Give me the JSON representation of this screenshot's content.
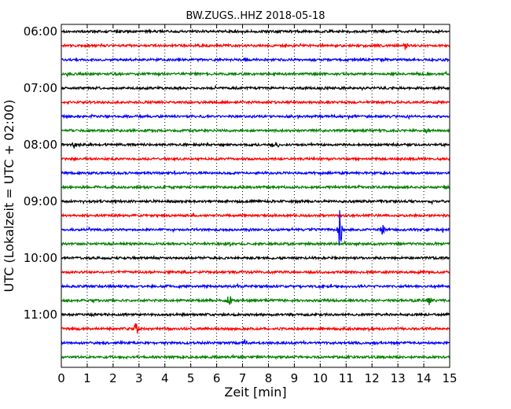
{
  "chart_data": {
    "type": "line",
    "title": "BW.ZUGS..HHZ 2018-05-18",
    "xlabel": "Zeit  [min]",
    "ylabel": "UTC (Lokalzeit = UTC + 02:00)",
    "xlim": [
      0,
      15
    ],
    "x_ticks": [
      0,
      1,
      2,
      3,
      4,
      5,
      6,
      7,
      8,
      9,
      10,
      11,
      12,
      13,
      14,
      15
    ],
    "grid": "vertical dotted at each minute",
    "y_tick_labels": [
      "06:00",
      "07:00",
      "08:00",
      "09:00",
      "10:00",
      "11:00"
    ],
    "trace_colors": [
      "#000000",
      "#ff0000",
      "#0000ff",
      "#008000"
    ],
    "trace_starts": [
      "06:00",
      "06:15",
      "06:30",
      "06:45",
      "07:00",
      "07:15",
      "07:30",
      "07:45",
      "08:00",
      "08:15",
      "08:30",
      "08:45",
      "09:00",
      "09:15",
      "09:30",
      "09:45",
      "10:00",
      "10:15",
      "10:30",
      "10:45",
      "11:00",
      "11:15",
      "11:30",
      "11:45"
    ],
    "events": [
      {
        "trace": 1,
        "x": 13.3,
        "amplitude": 0.35
      },
      {
        "trace": 8,
        "x": 0.5,
        "amplitude": 0.25
      },
      {
        "trace": 8,
        "x": 8.3,
        "amplitude": 0.2
      },
      {
        "trace": 14,
        "x": 10.75,
        "amplitude": 1.4
      },
      {
        "trace": 14,
        "x": 12.4,
        "amplitude": 0.35
      },
      {
        "trace": 19,
        "x": 6.5,
        "amplitude": 0.45
      },
      {
        "trace": 19,
        "x": 14.2,
        "amplitude": 0.3
      },
      {
        "trace": 21,
        "x": 2.9,
        "amplitude": 0.45
      },
      {
        "trace": 22,
        "x": 7.1,
        "amplitude": 0.25
      }
    ]
  }
}
